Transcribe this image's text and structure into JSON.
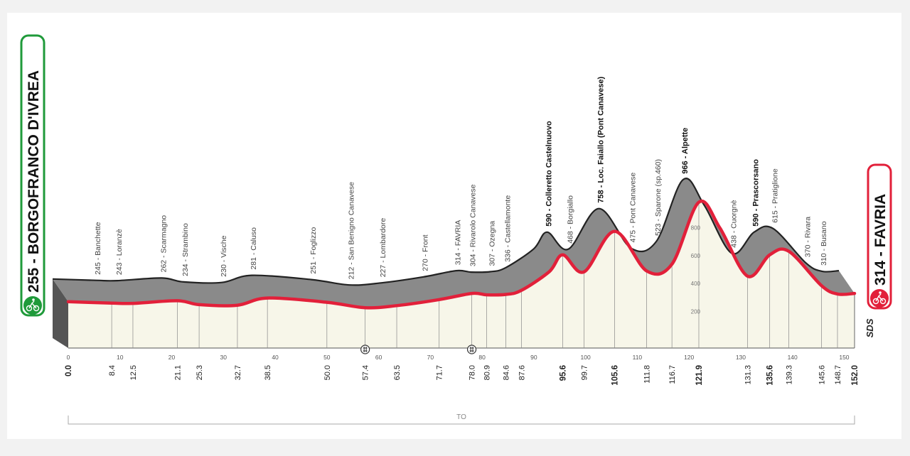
{
  "chart_data": {
    "type": "area",
    "title": "",
    "xlabel": "",
    "ylabel": "",
    "xlim": [
      0,
      152
    ],
    "ylim": [
      0,
      1000
    ],
    "start": {
      "altitude": "255",
      "name": "BORGOFRANCO D'IVREA",
      "label": "255 - BORGOFRANCO D'IVREA"
    },
    "finish": {
      "altitude": "314",
      "name": "FAVRIA",
      "label": "314 - FAVRIA"
    },
    "series": [
      {
        "values": [
          [
            0,
            255
          ],
          [
            8.4,
            245
          ],
          [
            12.5,
            243
          ],
          [
            21.1,
            262
          ],
          [
            25.3,
            234
          ],
          [
            32.7,
            230
          ],
          [
            38.5,
            281
          ],
          [
            50.0,
            251
          ],
          [
            57.4,
            212
          ],
          [
            63.5,
            227
          ],
          [
            71.7,
            270
          ],
          [
            78.0,
            314
          ],
          [
            80.9,
            304
          ],
          [
            84.6,
            307
          ],
          [
            87.6,
            336
          ],
          [
            93.0,
            470
          ],
          [
            95.6,
            590
          ],
          [
            99.7,
            468
          ],
          [
            105.6,
            758
          ],
          [
            111.8,
            475
          ],
          [
            116.7,
            523
          ],
          [
            121.9,
            966
          ],
          [
            126.0,
            780
          ],
          [
            131.3,
            438
          ],
          [
            135.6,
            590
          ],
          [
            139.3,
            615
          ],
          [
            145.6,
            370
          ],
          [
            148.7,
            310
          ],
          [
            152.0,
            314
          ]
        ]
      }
    ],
    "y_ticks": [
      "200",
      "400",
      "600",
      "800"
    ],
    "x_ticks": [
      "0",
      "10",
      "20",
      "30",
      "40",
      "50",
      "60",
      "70",
      "80",
      "90",
      "100",
      "110",
      "120",
      "130",
      "140",
      "150"
    ],
    "km_points": [
      {
        "km": 0.0,
        "label": "0.0",
        "bold": true
      },
      {
        "km": 8.4,
        "label": "8.4",
        "bold": false
      },
      {
        "km": 12.5,
        "label": "12.5",
        "bold": false
      },
      {
        "km": 21.1,
        "label": "21.1",
        "bold": false
      },
      {
        "km": 25.3,
        "label": "25.3",
        "bold": false
      },
      {
        "km": 32.7,
        "label": "32.7",
        "bold": false
      },
      {
        "km": 38.5,
        "label": "38.5",
        "bold": false
      },
      {
        "km": 50.0,
        "label": "50.0",
        "bold": false
      },
      {
        "km": 57.4,
        "label": "57.4",
        "bold": false
      },
      {
        "km": 63.5,
        "label": "63.5",
        "bold": false
      },
      {
        "km": 71.7,
        "label": "71.7",
        "bold": false
      },
      {
        "km": 78.0,
        "label": "78.0",
        "bold": false
      },
      {
        "km": 80.9,
        "label": "80.9",
        "bold": false
      },
      {
        "km": 84.6,
        "label": "84.6",
        "bold": false
      },
      {
        "km": 87.6,
        "label": "87.6",
        "bold": false
      },
      {
        "km": 95.6,
        "label": "95.6",
        "bold": true
      },
      {
        "km": 99.7,
        "label": "99.7",
        "bold": false
      },
      {
        "km": 105.6,
        "label": "105.6",
        "bold": true
      },
      {
        "km": 111.8,
        "label": "111.8",
        "bold": false
      },
      {
        "km": 116.7,
        "label": "116.7",
        "bold": false
      },
      {
        "km": 121.9,
        "label": "121.9",
        "bold": true
      },
      {
        "km": 131.3,
        "label": "131.3",
        "bold": false
      },
      {
        "km": 135.6,
        "label": "135.6",
        "bold": true
      },
      {
        "km": 139.3,
        "label": "139.3",
        "bold": false
      },
      {
        "km": 145.6,
        "label": "145.6",
        "bold": false
      },
      {
        "km": 148.7,
        "label": "148.7",
        "bold": false
      },
      {
        "km": 152.0,
        "label": "152.0",
        "bold": true
      }
    ],
    "locations": [
      {
        "km": 8.4,
        "alt": 245,
        "label": "245 - Banchette",
        "bold": false
      },
      {
        "km": 12.5,
        "alt": 243,
        "label": "243 - Loranzè",
        "bold": false
      },
      {
        "km": 21.1,
        "alt": 262,
        "label": "262 - Scarmagno",
        "bold": false
      },
      {
        "km": 25.3,
        "alt": 234,
        "label": "234 - Strambino",
        "bold": false
      },
      {
        "km": 32.7,
        "alt": 230,
        "label": "230 - Vische",
        "bold": false
      },
      {
        "km": 38.5,
        "alt": 281,
        "label": "281 - Caluso",
        "bold": false
      },
      {
        "km": 50.0,
        "alt": 251,
        "label": "251 - Foglizzo",
        "bold": false
      },
      {
        "km": 57.4,
        "alt": 212,
        "label": "212 - San Benigno Canavese",
        "bold": false
      },
      {
        "km": 63.5,
        "alt": 227,
        "label": "227 - Lombardore",
        "bold": false
      },
      {
        "km": 71.7,
        "alt": 270,
        "label": "270 - Front",
        "bold": false
      },
      {
        "km": 78.0,
        "alt": 314,
        "label": "314 - FAVRIA",
        "bold": false
      },
      {
        "km": 80.9,
        "alt": 304,
        "label": "304 - Rivarolo Canavese",
        "bold": false
      },
      {
        "km": 84.6,
        "alt": 307,
        "label": "307 - Ozegna",
        "bold": false
      },
      {
        "km": 87.6,
        "alt": 336,
        "label": "336 - Castellamonte",
        "bold": false
      },
      {
        "km": 95.6,
        "alt": 590,
        "label": "590 - Colleretto Castelnuovo",
        "bold": true
      },
      {
        "km": 99.7,
        "alt": 468,
        "label": "468 - Borgiallo",
        "bold": false
      },
      {
        "km": 105.6,
        "alt": 758,
        "label": "758 - Loc. Faiallo (Pont Canavese)",
        "bold": true
      },
      {
        "km": 111.8,
        "alt": 475,
        "label": "475 - Pont Canavese",
        "bold": false
      },
      {
        "km": 116.7,
        "alt": 523,
        "label": "523 - Sparone (sp.460)",
        "bold": false
      },
      {
        "km": 121.9,
        "alt": 966,
        "label": "966 - Alpette",
        "bold": true
      },
      {
        "km": 131.3,
        "alt": 438,
        "label": "438 - Cuorgnè",
        "bold": false
      },
      {
        "km": 135.6,
        "alt": 590,
        "label": "590 - Prascorsano",
        "bold": true
      },
      {
        "km": 139.3,
        "alt": 615,
        "label": "615 - Pratiglione",
        "bold": false
      },
      {
        "km": 145.6,
        "alt": 370,
        "label": "370 - Rivara",
        "bold": false
      },
      {
        "km": 148.7,
        "alt": 310,
        "label": "310 - Busano",
        "bold": false
      }
    ],
    "sprints_km": [
      57.4,
      78.0
    ],
    "bracket_label": "TO",
    "brand": "SDS",
    "colors": {
      "route": "#e2203a",
      "mountain": "#8a8a8a",
      "ground": "#f7f6e9",
      "start": "#1f9a3a",
      "finish": "#e2203a"
    }
  }
}
